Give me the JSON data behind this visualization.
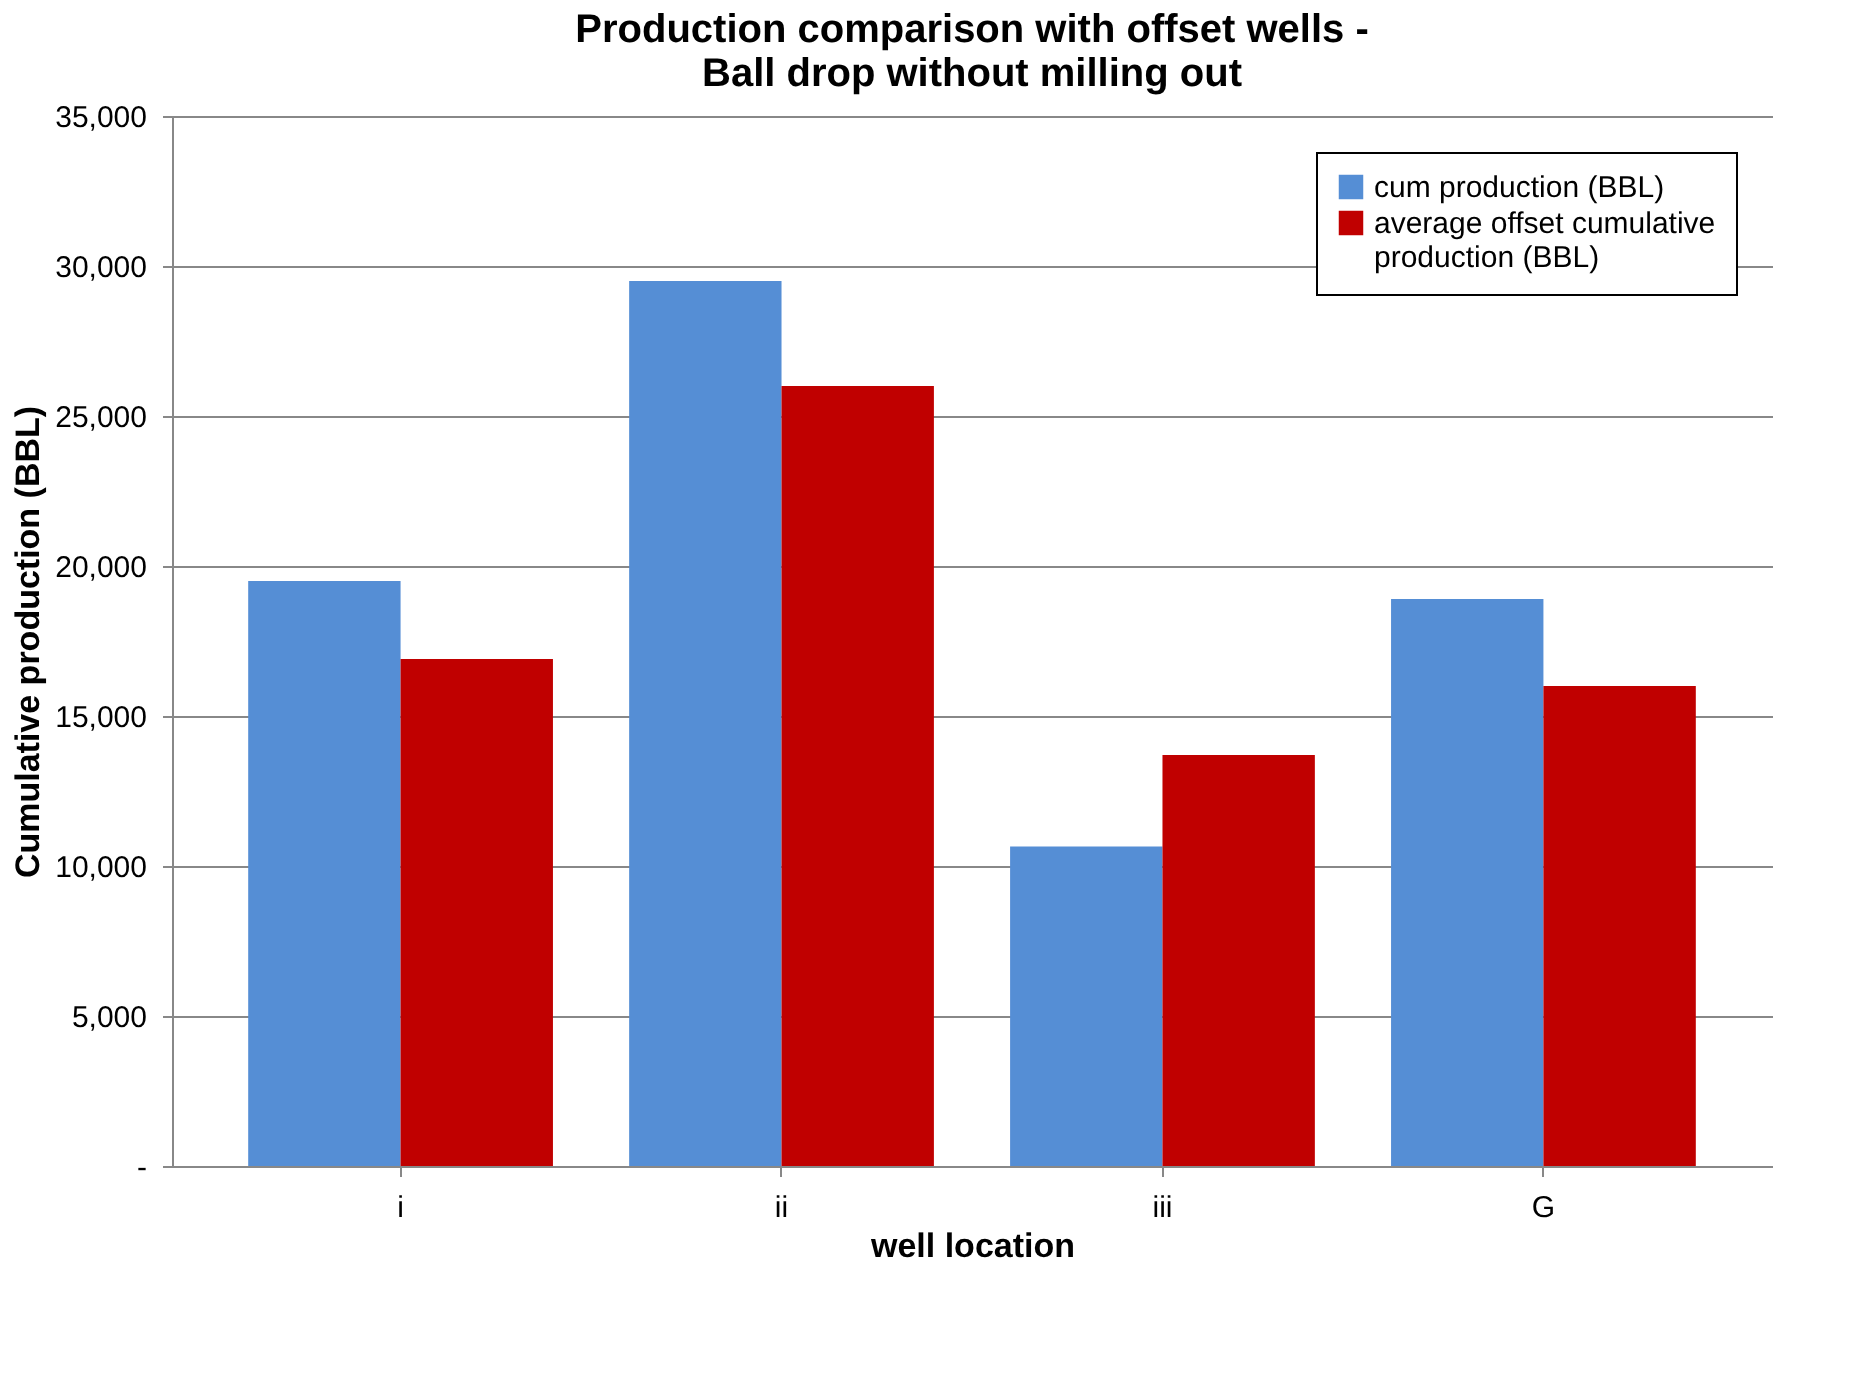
{
  "chart_data": {
    "type": "bar",
    "title": "Production comparison with offset wells - Ball drop without milling out",
    "xlabel": "well location",
    "ylabel": "Cumulative production (BBL)",
    "categories": [
      "i",
      "ii",
      "iii",
      "G"
    ],
    "series": [
      {
        "name": "cum production (BBL)",
        "color": "#558ed5",
        "values": [
          19500,
          29500,
          10650,
          18900
        ]
      },
      {
        "name": "average offset cumulative production (BBL)",
        "color": "#c00000",
        "values": [
          16900,
          26000,
          13700,
          16000
        ]
      }
    ],
    "ylim": [
      0,
      35000
    ],
    "yticks": [
      {
        "value": 0,
        "label": "-"
      },
      {
        "value": 5000,
        "label": "5,000"
      },
      {
        "value": 10000,
        "label": "10,000"
      },
      {
        "value": 15000,
        "label": "15,000"
      },
      {
        "value": 20000,
        "label": "20,000"
      },
      {
        "value": 25000,
        "label": "25,000"
      },
      {
        "value": 30000,
        "label": "30,000"
      },
      {
        "value": 35000,
        "label": "35,000"
      }
    ],
    "grid": "y",
    "legend": "top right"
  }
}
